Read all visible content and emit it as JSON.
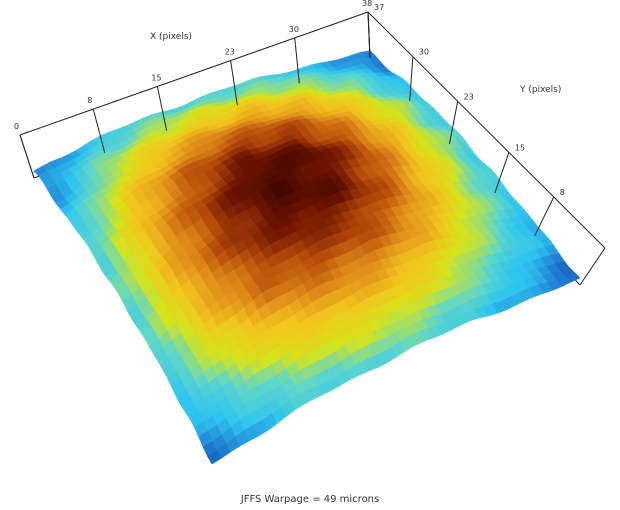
{
  "chart_data": {
    "type": "heatmap",
    "variant": "3d-surface",
    "caption": "JFFS Warpage = 49 microns",
    "xlabel": "X (pixels)",
    "ylabel": "Y (pixels)",
    "x_ticks": [
      0,
      8,
      15,
      23,
      30,
      38
    ],
    "y_ticks": [
      8,
      15,
      23,
      30,
      37
    ],
    "xlim": [
      0,
      38
    ],
    "ylim": [
      0,
      37
    ],
    "colorscale": [
      "#08306b",
      "#1f78d1",
      "#2ec4f0",
      "#5fd6c9",
      "#d6e41a",
      "#f2c31e",
      "#e08d1a",
      "#b84b0a",
      "#6b1300",
      "#2c0200"
    ],
    "surface": {
      "grid_nx": 8,
      "grid_ny": 8,
      "values": [
        [
          0.1,
          0.18,
          0.28,
          0.3,
          0.3,
          0.28,
          0.2,
          0.1
        ],
        [
          0.22,
          0.4,
          0.55,
          0.62,
          0.62,
          0.55,
          0.38,
          0.18
        ],
        [
          0.28,
          0.52,
          0.72,
          0.82,
          0.82,
          0.72,
          0.5,
          0.28
        ],
        [
          0.3,
          0.56,
          0.8,
          0.95,
          0.92,
          0.78,
          0.55,
          0.3
        ],
        [
          0.3,
          0.55,
          0.78,
          0.92,
          0.9,
          0.76,
          0.54,
          0.3
        ],
        [
          0.26,
          0.48,
          0.66,
          0.76,
          0.74,
          0.64,
          0.46,
          0.26
        ],
        [
          0.18,
          0.36,
          0.48,
          0.52,
          0.5,
          0.44,
          0.32,
          0.16
        ],
        [
          0.08,
          0.18,
          0.26,
          0.28,
          0.26,
          0.22,
          0.16,
          0.08
        ]
      ]
    }
  }
}
